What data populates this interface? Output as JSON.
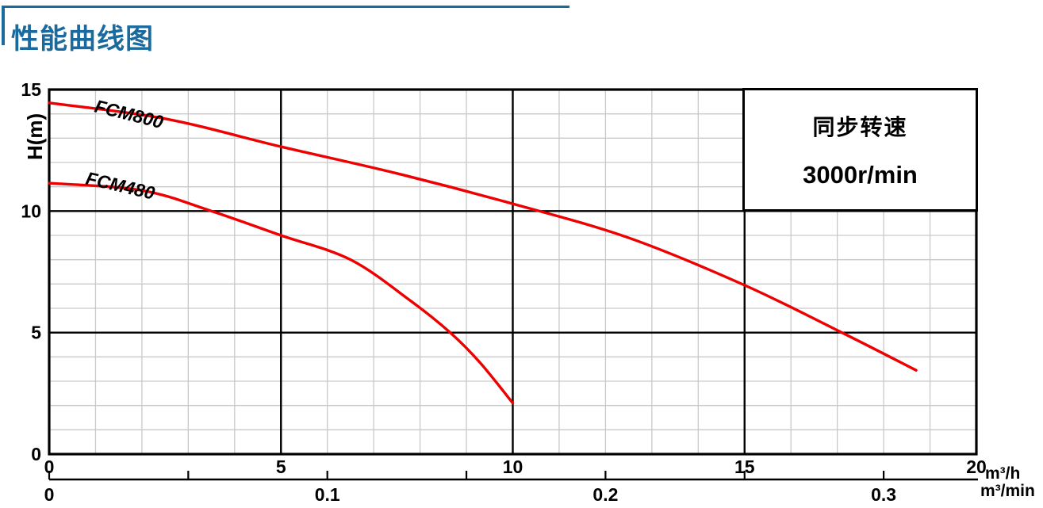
{
  "page": {
    "title": "性能曲线图"
  },
  "colors": {
    "accent_blue": "#1a6a9e",
    "curve_red": "#ee0000",
    "grid_minor": "#c9c9c9",
    "grid_major": "#000000"
  },
  "annotation_box": {
    "line1": "同步转速",
    "line2": "3000r/min"
  },
  "chart_data": {
    "type": "line",
    "title": "性能曲线图",
    "grid": "on",
    "y_axis": {
      "label": "H(m)",
      "min": 0,
      "max": 15,
      "major_ticks": [
        0,
        5,
        10,
        15
      ],
      "minor_step": 1
    },
    "x_axis": {
      "label": "m³/h",
      "min": 0,
      "max": 20,
      "major_ticks": [
        0,
        5,
        10,
        15,
        20
      ],
      "minor_step": 1
    },
    "x_axis_secondary": {
      "label": "m³/min",
      "min": 0,
      "max": 0.333,
      "major_ticks": [
        0,
        0.1,
        0.2,
        0.3
      ],
      "minor_step": 0.05,
      "unit_ratio_to_primary": 60
    },
    "series": [
      {
        "name": "FCM800",
        "color": "#ee0000",
        "points": [
          [
            0,
            14.45
          ],
          [
            2.5,
            13.8
          ],
          [
            5,
            12.65
          ],
          [
            7.5,
            11.55
          ],
          [
            10,
            10.3
          ],
          [
            12.5,
            8.9
          ],
          [
            15,
            6.95
          ],
          [
            17.1,
            5.0
          ],
          [
            18.7,
            3.45
          ]
        ]
      },
      {
        "name": "FCM480",
        "color": "#ee0000",
        "points": [
          [
            0,
            11.15
          ],
          [
            2,
            10.85
          ],
          [
            3.5,
            10.0
          ],
          [
            5,
            9.0
          ],
          [
            6.5,
            8.0
          ],
          [
            7.8,
            6.3
          ],
          [
            8.65,
            5.0
          ],
          [
            9.3,
            3.75
          ],
          [
            10,
            2.1
          ]
        ]
      }
    ],
    "legend": "none"
  }
}
